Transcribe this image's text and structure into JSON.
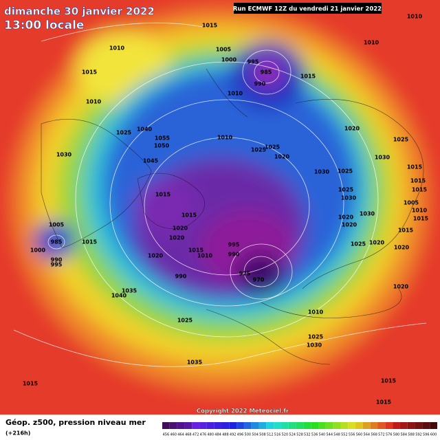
{
  "header": {
    "date": "dimanche 30 janvier 2022",
    "time": "13:00 locale",
    "run": "Run ECMWF 12Z du vendredi 21 janvier 2022"
  },
  "footer": {
    "field": "Géop. z500, pression niveau mer",
    "lead": "(+216h)",
    "copyright": "Copyright 2022 Meteociel.fr"
  },
  "colorbar": {
    "labels": [
      "456",
      "460",
      "464",
      "468",
      "472",
      "476",
      "480",
      "484",
      "488",
      "492",
      "496",
      "500",
      "504",
      "508",
      "512",
      "516",
      "520",
      "524",
      "528",
      "532",
      "536",
      "540",
      "544",
      "548",
      "552",
      "556",
      "560",
      "564",
      "568",
      "572",
      "576",
      "580",
      "584",
      "588",
      "592",
      "596",
      "600"
    ]
  },
  "isobar_labels": [
    "1015",
    "1010",
    "1015",
    "1005",
    "1000",
    "995",
    "985",
    "990",
    "1015",
    "1010",
    "1010",
    "1010",
    "1010",
    "1025",
    "1040",
    "1055",
    "1050",
    "1010",
    "1025",
    "1025",
    "1020",
    "1020",
    "1025",
    "1030",
    "1045",
    "1030",
    "1025",
    "1030",
    "1015",
    "1025",
    "1030",
    "1015",
    "1020",
    "1020",
    "1005",
    "985",
    "1015",
    "1000",
    "990",
    "995",
    "1015",
    "1010",
    "995",
    "990",
    "1020",
    "975",
    "970",
    "990",
    "1020",
    "1020",
    "1030",
    "1025",
    "1020",
    "1035",
    "1040",
    "1010",
    "1025",
    "1025",
    "1030",
    "1035",
    "1015",
    "1015",
    "1015",
    "1015",
    "1015",
    "1015",
    "1005",
    "1010",
    "1015",
    "1015",
    "1020",
    "1020"
  ]
}
